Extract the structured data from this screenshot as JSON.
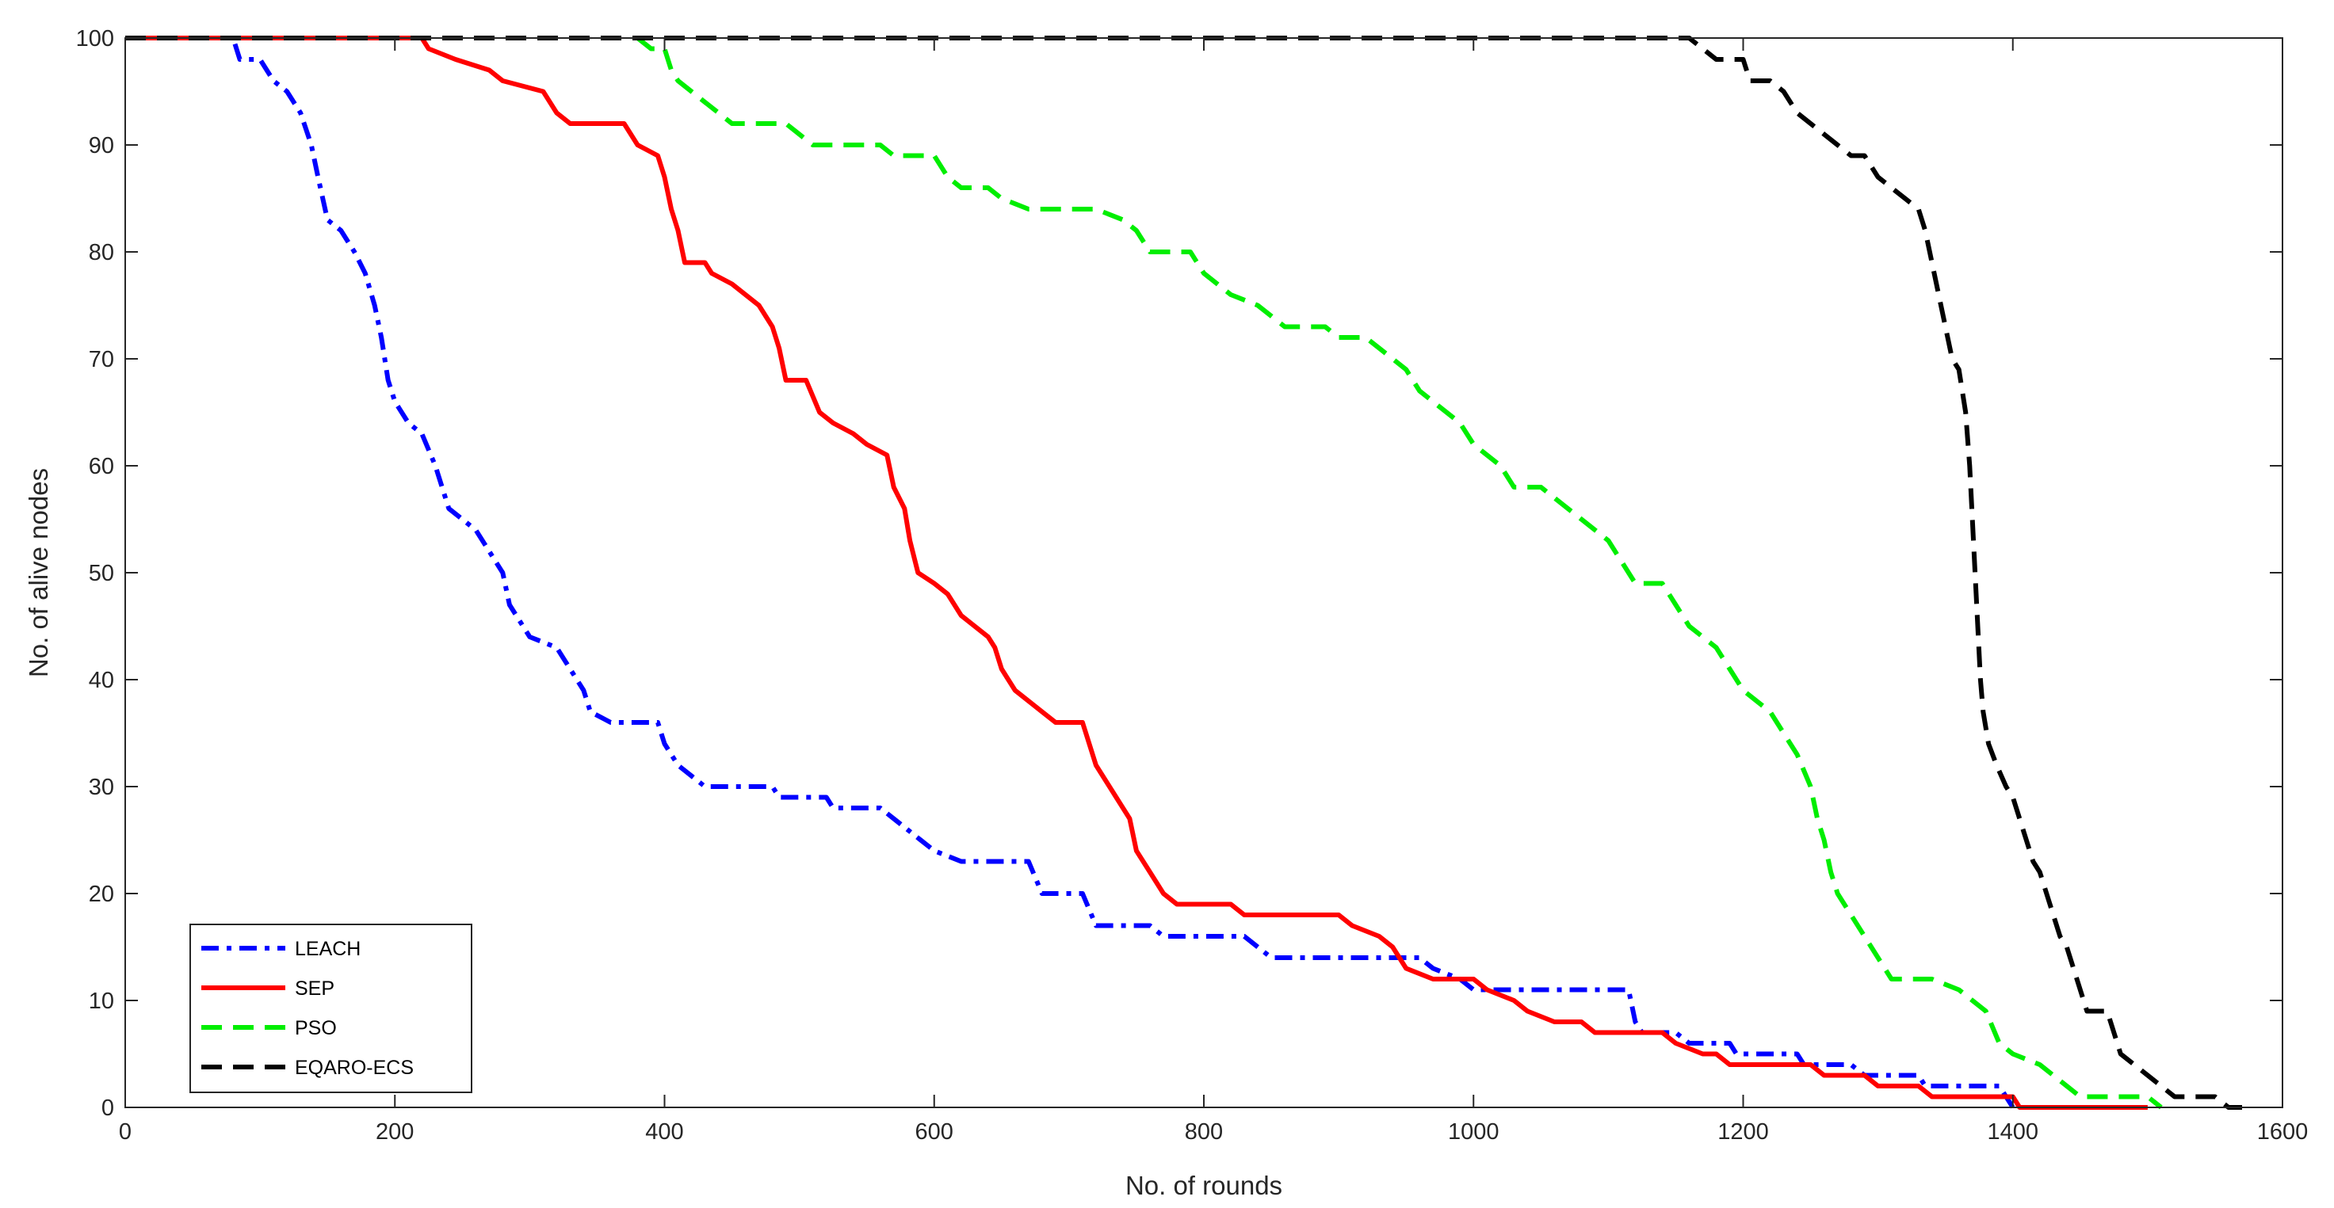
{
  "chart_data": {
    "type": "line",
    "title": "",
    "xlabel": "No. of rounds",
    "ylabel": "No. of alive nodes",
    "xlim": [
      0,
      1600
    ],
    "ylim": [
      0,
      100
    ],
    "xticks": [
      0,
      200,
      400,
      600,
      800,
      1000,
      1200,
      1400,
      1600
    ],
    "yticks": [
      0,
      10,
      20,
      30,
      40,
      50,
      60,
      70,
      80,
      90,
      100
    ],
    "grid": false,
    "legend_position": "bottom-left",
    "series": [
      {
        "name": "LEACH",
        "color": "#0000ff",
        "style": "dashdot",
        "points": [
          [
            0,
            100
          ],
          [
            80,
            100
          ],
          [
            85,
            98
          ],
          [
            100,
            98
          ],
          [
            110,
            96
          ],
          [
            120,
            95
          ],
          [
            130,
            93
          ],
          [
            138,
            90
          ],
          [
            143,
            87
          ],
          [
            150,
            83
          ],
          [
            160,
            82
          ],
          [
            170,
            80
          ],
          [
            178,
            78
          ],
          [
            185,
            75
          ],
          [
            190,
            72
          ],
          [
            195,
            68
          ],
          [
            200,
            66
          ],
          [
            210,
            64
          ],
          [
            220,
            63
          ],
          [
            230,
            60
          ],
          [
            240,
            56
          ],
          [
            250,
            55
          ],
          [
            260,
            54
          ],
          [
            270,
            52
          ],
          [
            280,
            50
          ],
          [
            285,
            47
          ],
          [
            295,
            45
          ],
          [
            300,
            44
          ],
          [
            320,
            43
          ],
          [
            330,
            41
          ],
          [
            340,
            39
          ],
          [
            345,
            37
          ],
          [
            360,
            36
          ],
          [
            395,
            36
          ],
          [
            400,
            34
          ],
          [
            410,
            32
          ],
          [
            420,
            31
          ],
          [
            430,
            30
          ],
          [
            480,
            30
          ],
          [
            485,
            29
          ],
          [
            520,
            29
          ],
          [
            525,
            28
          ],
          [
            560,
            28
          ],
          [
            570,
            27
          ],
          [
            580,
            26
          ],
          [
            590,
            25
          ],
          [
            600,
            24
          ],
          [
            620,
            23
          ],
          [
            670,
            23
          ],
          [
            680,
            20
          ],
          [
            710,
            20
          ],
          [
            720,
            17
          ],
          [
            760,
            17
          ],
          [
            770,
            16
          ],
          [
            830,
            16
          ],
          [
            840,
            15
          ],
          [
            850,
            14
          ],
          [
            960,
            14
          ],
          [
            970,
            13
          ],
          [
            990,
            12
          ],
          [
            1000,
            11
          ],
          [
            1115,
            11
          ],
          [
            1120,
            8
          ],
          [
            1125,
            7
          ],
          [
            1150,
            7
          ],
          [
            1160,
            6
          ],
          [
            1190,
            6
          ],
          [
            1195,
            5
          ],
          [
            1240,
            5
          ],
          [
            1245,
            4
          ],
          [
            1280,
            4
          ],
          [
            1290,
            3
          ],
          [
            1330,
            3
          ],
          [
            1335,
            2
          ],
          [
            1390,
            2
          ],
          [
            1400,
            0
          ]
        ]
      },
      {
        "name": "SEP",
        "color": "#ff0000",
        "style": "solid",
        "points": [
          [
            0,
            100
          ],
          [
            220,
            100
          ],
          [
            225,
            99
          ],
          [
            245,
            98
          ],
          [
            270,
            97
          ],
          [
            280,
            96
          ],
          [
            310,
            95
          ],
          [
            320,
            93
          ],
          [
            330,
            92
          ],
          [
            370,
            92
          ],
          [
            380,
            90
          ],
          [
            395,
            89
          ],
          [
            400,
            87
          ],
          [
            405,
            84
          ],
          [
            410,
            82
          ],
          [
            415,
            79
          ],
          [
            430,
            79
          ],
          [
            435,
            78
          ],
          [
            450,
            77
          ],
          [
            460,
            76
          ],
          [
            470,
            75
          ],
          [
            480,
            73
          ],
          [
            485,
            71
          ],
          [
            490,
            68
          ],
          [
            505,
            68
          ],
          [
            515,
            65
          ],
          [
            525,
            64
          ],
          [
            540,
            63
          ],
          [
            550,
            62
          ],
          [
            565,
            61
          ],
          [
            570,
            58
          ],
          [
            578,
            56
          ],
          [
            582,
            53
          ],
          [
            588,
            50
          ],
          [
            600,
            49
          ],
          [
            610,
            48
          ],
          [
            620,
            46
          ],
          [
            640,
            44
          ],
          [
            645,
            43
          ],
          [
            650,
            41
          ],
          [
            660,
            39
          ],
          [
            670,
            38
          ],
          [
            680,
            37
          ],
          [
            690,
            36
          ],
          [
            710,
            36
          ],
          [
            715,
            34
          ],
          [
            720,
            32
          ],
          [
            725,
            31
          ],
          [
            735,
            29
          ],
          [
            745,
            27
          ],
          [
            750,
            24
          ],
          [
            760,
            22
          ],
          [
            770,
            20
          ],
          [
            780,
            19
          ],
          [
            820,
            19
          ],
          [
            830,
            18
          ],
          [
            900,
            18
          ],
          [
            910,
            17
          ],
          [
            930,
            16
          ],
          [
            940,
            15
          ],
          [
            950,
            13
          ],
          [
            970,
            12
          ],
          [
            1000,
            12
          ],
          [
            1010,
            11
          ],
          [
            1030,
            10
          ],
          [
            1040,
            9
          ],
          [
            1060,
            8
          ],
          [
            1080,
            8
          ],
          [
            1090,
            7
          ],
          [
            1140,
            7
          ],
          [
            1150,
            6
          ],
          [
            1170,
            5
          ],
          [
            1180,
            5
          ],
          [
            1190,
            4
          ],
          [
            1250,
            4
          ],
          [
            1260,
            3
          ],
          [
            1290,
            3
          ],
          [
            1300,
            2
          ],
          [
            1330,
            2
          ],
          [
            1340,
            1
          ],
          [
            1400,
            1
          ],
          [
            1405,
            0
          ],
          [
            1500,
            0
          ]
        ]
      },
      {
        "name": "PSO",
        "color": "#00ee00",
        "style": "dashed",
        "points": [
          [
            380,
            100
          ],
          [
            390,
            99
          ],
          [
            400,
            99
          ],
          [
            405,
            97
          ],
          [
            410,
            96
          ],
          [
            420,
            95
          ],
          [
            430,
            94
          ],
          [
            440,
            93
          ],
          [
            450,
            92
          ],
          [
            490,
            92
          ],
          [
            500,
            91
          ],
          [
            510,
            90
          ],
          [
            560,
            90
          ],
          [
            570,
            89
          ],
          [
            600,
            89
          ],
          [
            610,
            87
          ],
          [
            620,
            86
          ],
          [
            640,
            86
          ],
          [
            650,
            85
          ],
          [
            670,
            84
          ],
          [
            720,
            84
          ],
          [
            740,
            83
          ],
          [
            750,
            82
          ],
          [
            760,
            80
          ],
          [
            790,
            80
          ],
          [
            800,
            78
          ],
          [
            810,
            77
          ],
          [
            820,
            76
          ],
          [
            840,
            75
          ],
          [
            850,
            74
          ],
          [
            860,
            73
          ],
          [
            890,
            73
          ],
          [
            900,
            72
          ],
          [
            920,
            72
          ],
          [
            930,
            71
          ],
          [
            940,
            70
          ],
          [
            950,
            69
          ],
          [
            960,
            67
          ],
          [
            970,
            66
          ],
          [
            980,
            65
          ],
          [
            990,
            64
          ],
          [
            1000,
            62
          ],
          [
            1010,
            61
          ],
          [
            1020,
            60
          ],
          [
            1030,
            58
          ],
          [
            1050,
            58
          ],
          [
            1060,
            57
          ],
          [
            1070,
            56
          ],
          [
            1080,
            55
          ],
          [
            1090,
            54
          ],
          [
            1100,
            53
          ],
          [
            1110,
            51
          ],
          [
            1120,
            49
          ],
          [
            1140,
            49
          ],
          [
            1150,
            47
          ],
          [
            1160,
            45
          ],
          [
            1170,
            44
          ],
          [
            1180,
            43
          ],
          [
            1190,
            41
          ],
          [
            1200,
            39
          ],
          [
            1210,
            38
          ],
          [
            1220,
            37
          ],
          [
            1230,
            35
          ],
          [
            1240,
            33
          ],
          [
            1250,
            30
          ],
          [
            1255,
            27
          ],
          [
            1260,
            25
          ],
          [
            1265,
            22
          ],
          [
            1270,
            20
          ],
          [
            1280,
            18
          ],
          [
            1290,
            16
          ],
          [
            1300,
            14
          ],
          [
            1310,
            12
          ],
          [
            1340,
            12
          ],
          [
            1360,
            11
          ],
          [
            1370,
            10
          ],
          [
            1380,
            9
          ],
          [
            1390,
            6
          ],
          [
            1400,
            5
          ],
          [
            1420,
            4
          ],
          [
            1430,
            3
          ],
          [
            1440,
            2
          ],
          [
            1450,
            1
          ],
          [
            1500,
            1
          ],
          [
            1510,
            0
          ]
        ]
      },
      {
        "name": "EQARO-ECS",
        "color": "#000000",
        "style": "dashed",
        "points": [
          [
            0,
            100
          ],
          [
            1160,
            100
          ],
          [
            1170,
            99
          ],
          [
            1180,
            98
          ],
          [
            1200,
            98
          ],
          [
            1205,
            96
          ],
          [
            1220,
            96
          ],
          [
            1230,
            95
          ],
          [
            1240,
            93
          ],
          [
            1250,
            92
          ],
          [
            1260,
            91
          ],
          [
            1270,
            90
          ],
          [
            1280,
            89
          ],
          [
            1290,
            89
          ],
          [
            1300,
            87
          ],
          [
            1310,
            86
          ],
          [
            1320,
            85
          ],
          [
            1330,
            84
          ],
          [
            1335,
            82
          ],
          [
            1340,
            79
          ],
          [
            1345,
            76
          ],
          [
            1350,
            73
          ],
          [
            1355,
            70
          ],
          [
            1360,
            69
          ],
          [
            1365,
            65
          ],
          [
            1368,
            60
          ],
          [
            1370,
            55
          ],
          [
            1372,
            50
          ],
          [
            1374,
            45
          ],
          [
            1376,
            40
          ],
          [
            1378,
            37
          ],
          [
            1382,
            34
          ],
          [
            1388,
            32
          ],
          [
            1395,
            30
          ],
          [
            1400,
            29
          ],
          [
            1405,
            27
          ],
          [
            1410,
            25
          ],
          [
            1415,
            23
          ],
          [
            1420,
            22
          ],
          [
            1425,
            20
          ],
          [
            1430,
            18
          ],
          [
            1435,
            16
          ],
          [
            1440,
            15
          ],
          [
            1445,
            13
          ],
          [
            1450,
            11
          ],
          [
            1455,
            9
          ],
          [
            1470,
            9
          ],
          [
            1475,
            7
          ],
          [
            1480,
            5
          ],
          [
            1490,
            4
          ],
          [
            1500,
            3
          ],
          [
            1510,
            2
          ],
          [
            1520,
            1
          ],
          [
            1550,
            1
          ],
          [
            1560,
            0
          ],
          [
            1570,
            0
          ]
        ]
      }
    ]
  }
}
